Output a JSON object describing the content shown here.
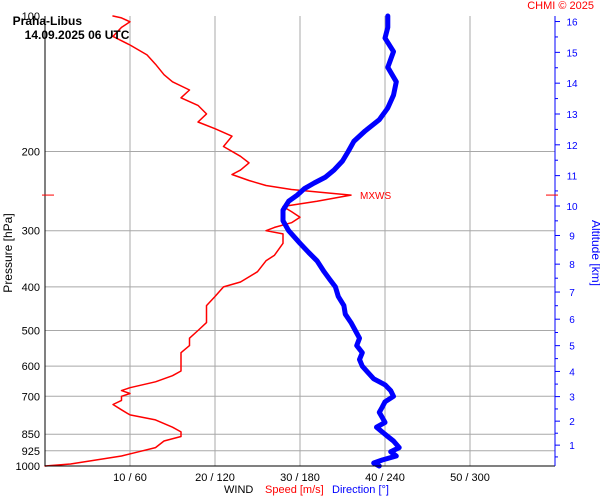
{
  "header": {
    "station": "Praha-Libus",
    "datetime": "14.09.2025 06 UTC",
    "copyright": "CHMI © 2025"
  },
  "colors": {
    "speed": "#ff0000",
    "direction": "#0000ff",
    "grid": "#a8a8a8",
    "altitude_axis": "#0000ff"
  },
  "chart_data": {
    "type": "line",
    "yscale": "log",
    "ylabel": "Pressure [hPa]",
    "ylabel_right": "Altitude [km]",
    "ylim": [
      1000,
      100
    ],
    "y_ticks": [
      "100",
      "200",
      "300",
      "400",
      "500",
      "600",
      "700",
      "850",
      "925",
      "1000"
    ],
    "x_ticks": [
      "10 / 60",
      "20 / 120",
      "30 / 180",
      "40 / 240",
      "50 / 300"
    ],
    "xlabel_prefix": "WIND",
    "xlabel_speed": "Speed [m/s]",
    "xlabel_direction": "Direction [°]",
    "xlim_speed": [
      0,
      60
    ],
    "xlim_direction": [
      0,
      360
    ],
    "altitude_ticks": [
      "1",
      "2",
      "3",
      "4",
      "5",
      "6",
      "7",
      "8",
      "9",
      "10",
      "11",
      "12",
      "13",
      "14",
      "15",
      "16"
    ],
    "annotation": {
      "label": "MXWS",
      "pressure": 250,
      "speed": 36
    },
    "grid": true,
    "series": [
      {
        "name": "Speed [m/s]",
        "axis": "speed",
        "points": [
          [
            1000,
            0
          ],
          [
            990,
            3
          ],
          [
            970,
            6
          ],
          [
            950,
            9
          ],
          [
            930,
            11
          ],
          [
            910,
            13
          ],
          [
            880,
            14
          ],
          [
            860,
            16
          ],
          [
            840,
            16
          ],
          [
            820,
            15
          ],
          [
            790,
            13
          ],
          [
            770,
            10
          ],
          [
            750,
            9
          ],
          [
            730,
            8
          ],
          [
            715,
            9
          ],
          [
            700,
            9
          ],
          [
            690,
            10
          ],
          [
            680,
            9
          ],
          [
            670,
            10
          ],
          [
            650,
            13
          ],
          [
            630,
            15
          ],
          [
            615,
            16
          ],
          [
            600,
            16
          ],
          [
            580,
            16
          ],
          [
            560,
            16
          ],
          [
            540,
            17
          ],
          [
            520,
            17
          ],
          [
            500,
            18
          ],
          [
            480,
            19
          ],
          [
            460,
            19
          ],
          [
            440,
            19
          ],
          [
            420,
            20
          ],
          [
            400,
            21
          ],
          [
            390,
            23
          ],
          [
            370,
            25
          ],
          [
            350,
            26
          ],
          [
            340,
            27
          ],
          [
            320,
            28
          ],
          [
            305,
            28
          ],
          [
            300,
            26
          ],
          [
            295,
            27
          ],
          [
            288,
            29
          ],
          [
            280,
            30
          ],
          [
            272,
            29
          ],
          [
            265,
            28
          ],
          [
            258,
            32
          ],
          [
            252,
            35
          ],
          [
            250,
            36
          ],
          [
            247,
            33
          ],
          [
            243,
            29
          ],
          [
            238,
            26
          ],
          [
            232,
            24
          ],
          [
            225,
            22
          ],
          [
            220,
            23
          ],
          [
            212,
            24
          ],
          [
            205,
            23
          ],
          [
            195,
            21
          ],
          [
            185,
            22
          ],
          [
            178,
            20
          ],
          [
            172,
            18
          ],
          [
            165,
            19
          ],
          [
            158,
            18
          ],
          [
            152,
            16
          ],
          [
            146,
            17
          ],
          [
            140,
            15
          ],
          [
            135,
            14
          ],
          [
            128,
            13
          ],
          [
            122,
            12
          ],
          [
            116,
            10
          ],
          [
            111,
            8
          ],
          [
            106,
            9
          ],
          [
            103,
            10
          ],
          [
            101,
            9
          ],
          [
            100,
            8
          ]
        ]
      },
      {
        "name": "Direction [°]",
        "axis": "direction",
        "points": [
          [
            1000,
            236
          ],
          [
            985,
            232
          ],
          [
            970,
            238
          ],
          [
            950,
            248
          ],
          [
            930,
            244
          ],
          [
            910,
            250
          ],
          [
            880,
            246
          ],
          [
            860,
            242
          ],
          [
            840,
            238
          ],
          [
            820,
            234
          ],
          [
            800,
            240
          ],
          [
            780,
            238
          ],
          [
            760,
            236
          ],
          [
            740,
            238
          ],
          [
            720,
            240
          ],
          [
            700,
            246
          ],
          [
            680,
            244
          ],
          [
            660,
            240
          ],
          [
            640,
            232
          ],
          [
            620,
            228
          ],
          [
            600,
            224
          ],
          [
            580,
            222
          ],
          [
            560,
            224
          ],
          [
            540,
            220
          ],
          [
            520,
            222
          ],
          [
            500,
            219
          ],
          [
            480,
            216
          ],
          [
            460,
            212
          ],
          [
            440,
            211
          ],
          [
            420,
            207
          ],
          [
            400,
            205
          ],
          [
            385,
            201
          ],
          [
            370,
            197
          ],
          [
            350,
            192
          ],
          [
            335,
            186
          ],
          [
            320,
            180
          ],
          [
            300,
            172
          ],
          [
            285,
            168
          ],
          [
            270,
            168
          ],
          [
            258,
            172
          ],
          [
            250,
            178
          ],
          [
            242,
            183
          ],
          [
            235,
            190
          ],
          [
            228,
            198
          ],
          [
            220,
            204
          ],
          [
            210,
            210
          ],
          [
            200,
            214
          ],
          [
            190,
            218
          ],
          [
            180,
            226
          ],
          [
            170,
            236
          ],
          [
            160,
            242
          ],
          [
            150,
            246
          ],
          [
            140,
            248
          ],
          [
            130,
            242
          ],
          [
            120,
            246
          ],
          [
            112,
            240
          ],
          [
            106,
            242
          ],
          [
            100,
            242
          ]
        ]
      }
    ]
  }
}
